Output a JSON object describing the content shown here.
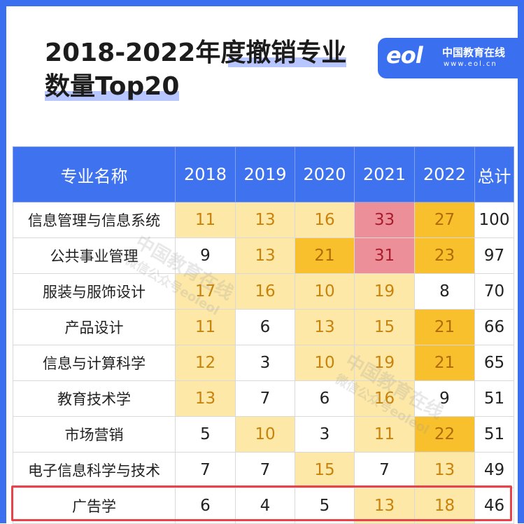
{
  "title": {
    "line1": "2018-2022年度撤销专业",
    "line2": "数量Top20"
  },
  "logo": {
    "mark": "eol",
    "name": "中国教育在线",
    "url": "www.eol.cn"
  },
  "table": {
    "headers": [
      "专业名称",
      "2018",
      "2019",
      "2020",
      "2021",
      "2022",
      "总计"
    ],
    "rows": [
      {
        "name": "信息管理与信息系统",
        "values": [
          "11",
          "13",
          "16",
          "33",
          "27"
        ],
        "colors": [
          "light",
          "light",
          "light",
          "pink",
          "gold"
        ],
        "total": "100"
      },
      {
        "name": "公共事业管理",
        "values": [
          "9",
          "13",
          "21",
          "31",
          "23"
        ],
        "colors": [
          "white",
          "light",
          "gold",
          "pink",
          "gold"
        ],
        "total": "97"
      },
      {
        "name": "服装与服饰设计",
        "values": [
          "17",
          "16",
          "10",
          "19",
          "8"
        ],
        "colors": [
          "light",
          "light",
          "light",
          "light",
          "white"
        ],
        "total": "70"
      },
      {
        "name": "产品设计",
        "values": [
          "11",
          "6",
          "13",
          "15",
          "21"
        ],
        "colors": [
          "light",
          "white",
          "light",
          "light",
          "gold"
        ],
        "total": "66"
      },
      {
        "name": "信息与计算科学",
        "values": [
          "12",
          "3",
          "10",
          "19",
          "21"
        ],
        "colors": [
          "light",
          "white",
          "light",
          "light",
          "gold"
        ],
        "total": "65"
      },
      {
        "name": "教育技术学",
        "values": [
          "13",
          "7",
          "6",
          "16",
          "9"
        ],
        "colors": [
          "light",
          "white",
          "white",
          "light",
          "white"
        ],
        "total": "51"
      },
      {
        "name": "市场营销",
        "values": [
          "5",
          "10",
          "3",
          "11",
          "22"
        ],
        "colors": [
          "white",
          "light",
          "white",
          "light",
          "gold"
        ],
        "total": "51"
      },
      {
        "name": "电子信息科学与技术",
        "values": [
          "7",
          "7",
          "15",
          "7",
          "13"
        ],
        "colors": [
          "white",
          "white",
          "light",
          "white",
          "light"
        ],
        "total": "49"
      },
      {
        "name": "广告学",
        "values": [
          "6",
          "4",
          "5",
          "13",
          "18"
        ],
        "colors": [
          "white",
          "white",
          "white",
          "light",
          "light"
        ],
        "total": "46"
      }
    ]
  },
  "watermark": {
    "line1": "中国教育在线",
    "line2": "微信公众号eoleol"
  },
  "colors": {
    "frame": "#3a6ff0",
    "header": "#3f72ee",
    "light": "#fde8a8",
    "gold": "#f8c02c",
    "pink": "#ec8f98",
    "highlight_border": "#e8424b"
  }
}
